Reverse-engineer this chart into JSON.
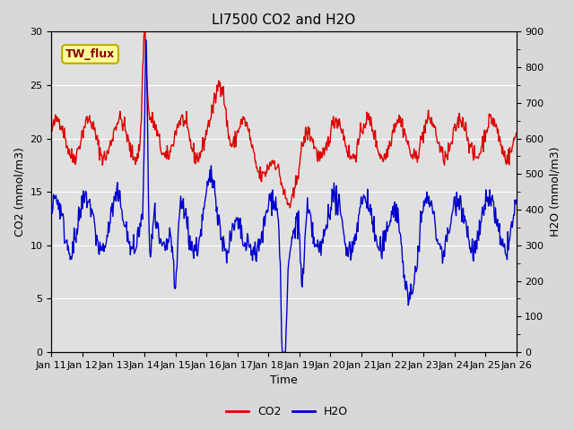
{
  "title": "LI7500 CO2 and H2O",
  "xlabel": "Time",
  "ylabel_left": "CO2 (mmol/m3)",
  "ylabel_right": "H2O (mmol/m3)",
  "ylim_left": [
    0,
    30
  ],
  "ylim_right": [
    0,
    900
  ],
  "xtick_labels": [
    "Jan 11",
    "Jan 12",
    "Jan 13",
    "Jan 14",
    "Jan 15",
    "Jan 16",
    "Jan 17",
    "Jan 18",
    "Jan 19",
    "Jan 20",
    "Jan 21",
    "Jan 22",
    "Jan 23",
    "Jan 24",
    "Jan 25",
    "Jan 26"
  ],
  "fig_bg_color": "#d8d8d8",
  "plot_bg_color": "#e0e0e0",
  "co2_color": "#dd0000",
  "h2o_color": "#0000cc",
  "legend_label_co2": "CO2",
  "legend_label_h2o": "H2O",
  "annotation_text": "TW_flux",
  "annotation_bg": "#ffff99",
  "annotation_border": "#bbaa00",
  "title_fontsize": 11,
  "axis_label_fontsize": 9,
  "tick_fontsize": 8,
  "legend_fontsize": 9,
  "linewidth": 1.0,
  "n_days": 15,
  "seed": 42
}
